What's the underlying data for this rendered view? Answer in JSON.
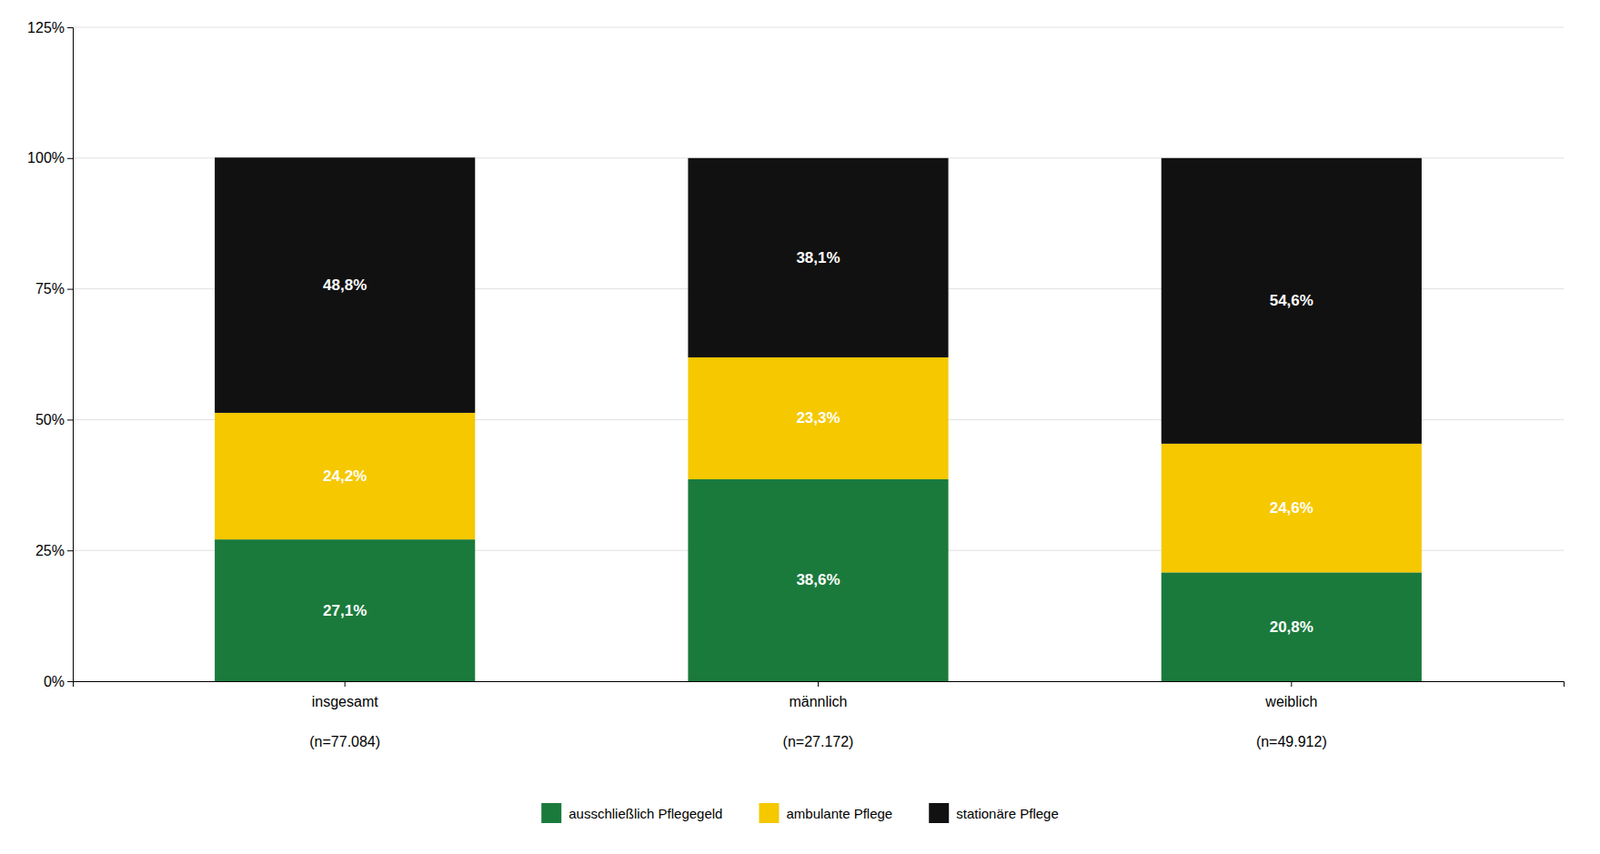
{
  "chart_data": {
    "type": "bar",
    "stacked": true,
    "data_labels": true,
    "grid": true,
    "legend": "bottom",
    "categories": [
      "insgesamt\n\n(n=77.084)",
      "männlich\n\n(n=27.172)",
      "weiblich\n\n(n=49.912)"
    ],
    "series": [
      {
        "name": "ausschließlich Pflegegeld",
        "color": "#1a7a3c",
        "values": [
          27.1,
          38.6,
          20.8
        ],
        "value_labels": [
          "27,1%",
          "38,6%",
          "20,8%"
        ]
      },
      {
        "name": "ambulante Pflege",
        "color": "#f5c800",
        "values": [
          24.2,
          23.3,
          24.6
        ],
        "value_labels": [
          "24,2%",
          "23,3%",
          "24,6%"
        ]
      },
      {
        "name": "stationäre Pflege",
        "color": "#111111",
        "values": [
          48.8,
          38.1,
          54.6
        ],
        "value_labels": [
          "48,8%",
          "38,1%",
          "54,6%"
        ]
      }
    ],
    "ylim": [
      0,
      125
    ],
    "yticks": [
      {
        "value": 0,
        "label": "0%"
      },
      {
        "value": 25,
        "label": "25%"
      },
      {
        "value": 50,
        "label": "50%"
      },
      {
        "value": 75,
        "label": "75%"
      },
      {
        "value": 100,
        "label": "100%"
      },
      {
        "value": 125,
        "label": "125%"
      }
    ]
  }
}
